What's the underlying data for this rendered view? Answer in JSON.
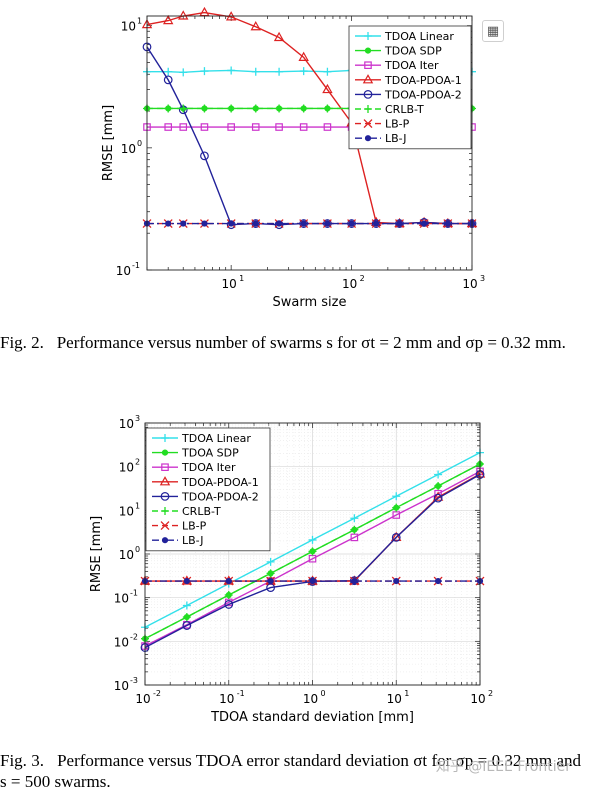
{
  "chart_data": [
    {
      "type": "line",
      "xscale": "log",
      "yscale": "log",
      "xlim": [
        2,
        1000
      ],
      "ylim": [
        0.1,
        12
      ],
      "xlabel": "Swarm size",
      "ylabel": "RMSE [mm]",
      "xticks": [
        {
          "v": 10,
          "b": "10",
          "e": "1"
        },
        {
          "v": 100,
          "b": "10",
          "e": "2"
        },
        {
          "v": 1000,
          "b": "10",
          "e": "3"
        }
      ],
      "yticks": [
        {
          "v": 0.1,
          "b": "10",
          "e": "-1"
        },
        {
          "v": 1,
          "b": "10",
          "e": "0"
        },
        {
          "v": 10,
          "b": "10",
          "e": "1"
        }
      ],
      "grid": false,
      "legend_position": "top-right",
      "series": [
        {
          "name": "TDOA Linear",
          "color": "#33e0ea",
          "marker": "plus",
          "dash": "solid",
          "x": [
            2,
            3,
            4,
            6,
            10,
            16,
            25,
            40,
            63,
            100,
            160,
            250,
            400,
            630,
            1000
          ],
          "y": [
            4.2,
            4.2,
            4.15,
            4.25,
            4.3,
            4.2,
            4.2,
            4.25,
            4.2,
            4.3,
            4.3,
            4.2,
            4.25,
            4.25,
            4.2
          ]
        },
        {
          "name": "TDOA SDP",
          "color": "#22dd22",
          "marker": "dot",
          "dash": "solid",
          "x": [
            2,
            3,
            4,
            6,
            10,
            16,
            25,
            40,
            63,
            100,
            160,
            250,
            400,
            630,
            1000
          ],
          "y": [
            2.1,
            2.1,
            2.1,
            2.1,
            2.1,
            2.1,
            2.1,
            2.1,
            2.1,
            2.1,
            2.1,
            2.1,
            2.1,
            2.1,
            2.1
          ]
        },
        {
          "name": "TDOA Iter",
          "color": "#cc33cc",
          "marker": "square",
          "dash": "solid",
          "x": [
            2,
            3,
            4,
            6,
            10,
            16,
            25,
            40,
            63,
            100,
            160,
            250,
            400,
            630,
            1000
          ],
          "y": [
            1.48,
            1.48,
            1.48,
            1.48,
            1.48,
            1.48,
            1.48,
            1.48,
            1.48,
            1.48,
            1.48,
            1.48,
            1.48,
            1.48,
            1.48
          ]
        },
        {
          "name": "TDOA-PDOA-1",
          "color": "#dd2222",
          "marker": "triangle",
          "dash": "solid",
          "x": [
            2,
            3,
            4,
            6,
            10,
            16,
            25,
            40,
            63,
            100,
            160,
            250,
            400,
            630,
            1000
          ],
          "y": [
            10.2,
            11.0,
            12.0,
            12.8,
            11.8,
            9.8,
            8.0,
            5.5,
            3.0,
            1.6,
            0.245,
            0.24,
            0.245,
            0.24,
            0.24
          ]
        },
        {
          "name": "TDOA-PDOA-2",
          "color": "#22229a",
          "marker": "circle",
          "dash": "solid",
          "x": [
            2,
            3,
            4,
            6,
            10,
            16,
            25,
            40,
            63,
            100,
            160,
            250,
            400,
            630,
            1000
          ],
          "y": [
            6.7,
            3.6,
            2.05,
            0.86,
            0.235,
            0.24,
            0.235,
            0.24,
            0.24,
            0.24,
            0.24,
            0.24,
            0.245,
            0.24,
            0.24
          ]
        },
        {
          "name": "CRLB-T",
          "color": "#22dd22",
          "marker": "plus",
          "dash": "dashed",
          "x": [
            2,
            3,
            4,
            6,
            10,
            16,
            25,
            40,
            63,
            100,
            160,
            250,
            400,
            630,
            1000
          ],
          "y": [
            2.1,
            2.1,
            2.1,
            2.1,
            2.1,
            2.1,
            2.1,
            2.1,
            2.1,
            2.1,
            2.1,
            2.1,
            2.1,
            2.1,
            2.1
          ]
        },
        {
          "name": "LB-P",
          "color": "#dd2222",
          "marker": "x",
          "dash": "dashed",
          "x": [
            2,
            3,
            4,
            6,
            10,
            16,
            25,
            40,
            63,
            100,
            160,
            250,
            400,
            630,
            1000
          ],
          "y": [
            0.24,
            0.24,
            0.24,
            0.24,
            0.24,
            0.24,
            0.24,
            0.24,
            0.24,
            0.24,
            0.24,
            0.24,
            0.24,
            0.24,
            0.24
          ]
        },
        {
          "name": "LB-J",
          "color": "#22229a",
          "marker": "dot",
          "dash": "dashdot",
          "x": [
            2,
            3,
            4,
            6,
            10,
            16,
            25,
            40,
            63,
            100,
            160,
            250,
            400,
            630,
            1000
          ],
          "y": [
            0.24,
            0.24,
            0.24,
            0.24,
            0.24,
            0.24,
            0.24,
            0.24,
            0.24,
            0.24,
            0.24,
            0.24,
            0.24,
            0.24,
            0.24
          ]
        }
      ]
    },
    {
      "type": "line",
      "xscale": "log",
      "yscale": "log",
      "xlim": [
        0.01,
        100
      ],
      "ylim": [
        0.001,
        1000
      ],
      "xlabel": "TDOA standard deviation [mm]",
      "ylabel": "RMSE [mm]",
      "xticks": [
        {
          "v": 0.01,
          "b": "10",
          "e": "-2"
        },
        {
          "v": 0.1,
          "b": "10",
          "e": "-1"
        },
        {
          "v": 1,
          "b": "10",
          "e": "0"
        },
        {
          "v": 10,
          "b": "10",
          "e": "1"
        },
        {
          "v": 100,
          "b": "10",
          "e": "2"
        }
      ],
      "yticks": [
        {
          "v": 0.001,
          "b": "10",
          "e": "-3"
        },
        {
          "v": 0.01,
          "b": "10",
          "e": "-2"
        },
        {
          "v": 0.1,
          "b": "10",
          "e": "-1"
        },
        {
          "v": 1,
          "b": "10",
          "e": "0"
        },
        {
          "v": 10,
          "b": "10",
          "e": "1"
        },
        {
          "v": 100,
          "b": "10",
          "e": "2"
        },
        {
          "v": 1000,
          "b": "10",
          "e": "3"
        }
      ],
      "grid": true,
      "legend_position": "top-left",
      "series": [
        {
          "name": "TDOA Linear",
          "color": "#33e0ea",
          "marker": "plus",
          "dash": "solid",
          "x": [
            0.01,
            0.0316,
            0.1,
            0.316,
            1,
            3.16,
            10,
            31.6,
            100
          ],
          "y": [
            0.021,
            0.066,
            0.21,
            0.66,
            2.1,
            6.6,
            21,
            66,
            210
          ]
        },
        {
          "name": "TDOA SDP",
          "color": "#22dd22",
          "marker": "dot",
          "dash": "solid",
          "x": [
            0.01,
            0.0316,
            0.1,
            0.316,
            1,
            3.16,
            10,
            31.6,
            100
          ],
          "y": [
            0.0115,
            0.036,
            0.115,
            0.36,
            1.15,
            3.6,
            11.5,
            36,
            115
          ]
        },
        {
          "name": "TDOA Iter",
          "color": "#cc33cc",
          "marker": "square",
          "dash": "solid",
          "x": [
            0.01,
            0.0316,
            0.1,
            0.316,
            1,
            3.16,
            10,
            31.6,
            100
          ],
          "y": [
            0.0078,
            0.024,
            0.078,
            0.24,
            0.78,
            2.4,
            7.8,
            24,
            78
          ]
        },
        {
          "name": "TDOA-PDOA-1",
          "color": "#dd2222",
          "marker": "triangle",
          "dash": "solid",
          "x": [
            0.01,
            0.0316,
            0.1,
            0.316,
            1,
            3.16,
            10,
            31.6,
            100
          ],
          "y": [
            0.24,
            0.24,
            0.24,
            0.24,
            0.24,
            0.24,
            2.4,
            20,
            68
          ]
        },
        {
          "name": "TDOA-PDOA-2",
          "color": "#22229a",
          "marker": "circle",
          "dash": "solid",
          "x": [
            0.01,
            0.0316,
            0.1,
            0.316,
            1,
            3.16,
            10,
            31.6,
            100
          ],
          "y": [
            0.0072,
            0.023,
            0.07,
            0.17,
            0.235,
            0.245,
            2.4,
            19,
            66
          ]
        },
        {
          "name": "CRLB-T",
          "color": "#22dd22",
          "marker": "plus",
          "dash": "dashed",
          "x": [
            0.01,
            0.0316,
            0.1,
            0.316,
            1,
            3.16,
            10,
            31.6,
            100
          ],
          "y": [
            0.0115,
            0.036,
            0.115,
            0.36,
            1.15,
            3.6,
            11.5,
            36,
            115
          ]
        },
        {
          "name": "LB-P",
          "color": "#dd2222",
          "marker": "x",
          "dash": "dashed",
          "x": [
            0.01,
            0.0316,
            0.1,
            0.316,
            1,
            3.16,
            10,
            31.6,
            100
          ],
          "y": [
            0.24,
            0.24,
            0.24,
            0.24,
            0.24,
            0.24,
            0.24,
            0.24,
            0.24
          ]
        },
        {
          "name": "LB-J",
          "color": "#22229a",
          "marker": "dot",
          "dash": "dashdot",
          "x": [
            0.01,
            0.0316,
            0.1,
            0.316,
            1,
            3.16,
            10,
            31.6,
            100
          ],
          "y": [
            0.24,
            0.24,
            0.24,
            0.24,
            0.24,
            0.24,
            0.24,
            0.24,
            0.24
          ]
        }
      ]
    }
  ],
  "captions": {
    "fig2": {
      "label": "Fig. 2.",
      "text": "Performance versus number of swarms s for σt = 2 mm and σp = 0.32 mm."
    },
    "fig3": {
      "label": "Fig. 3.",
      "text": "Performance versus TDOA error standard deviation σt for σp = 0.32 mm and s = 500 swarms."
    }
  },
  "watermark": "知乎 @IEEE Frontier",
  "expand_icon": "expand-icon"
}
